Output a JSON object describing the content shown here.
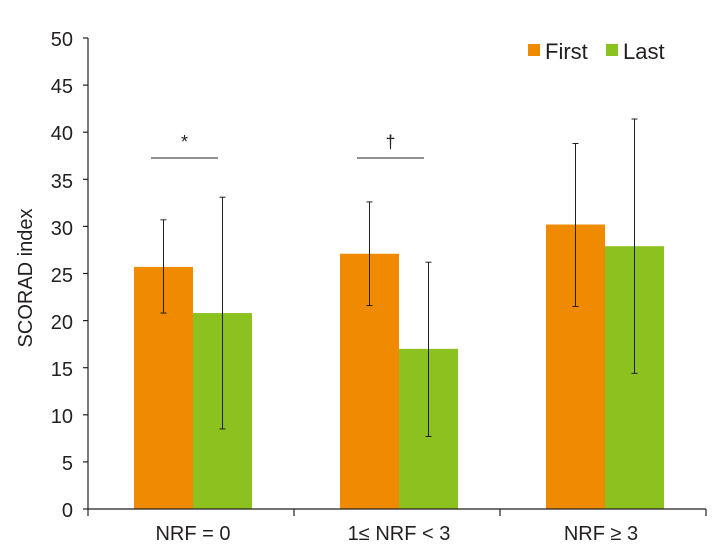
{
  "chart_data": {
    "type": "bar",
    "ylabel": "SCORAD index",
    "ylim": [
      0,
      50
    ],
    "yticks": [
      "0",
      "5",
      "10",
      "15",
      "20",
      "25",
      "30",
      "35",
      "40",
      "45",
      "50"
    ],
    "categories": [
      "NRF = 0",
      "1≤ NRF < 3",
      "NRF ≥ 3"
    ],
    "series": [
      {
        "name": "First",
        "color": "#f08a00",
        "values": [
          25.7,
          27.1,
          30.2
        ],
        "error_low": [
          20.8,
          21.6,
          21.5
        ],
        "error_high": [
          30.7,
          32.6,
          38.8
        ]
      },
      {
        "name": "Last",
        "color": "#8cc21f",
        "values": [
          20.8,
          17.0,
          27.9
        ],
        "error_low": [
          8.5,
          7.7,
          14.4
        ],
        "error_high": [
          33.1,
          26.2,
          41.4
        ]
      }
    ],
    "annotations": [
      {
        "category_index": 0,
        "text": "*"
      },
      {
        "category_index": 1,
        "text": "†"
      }
    ],
    "legend_position": "top-right"
  }
}
